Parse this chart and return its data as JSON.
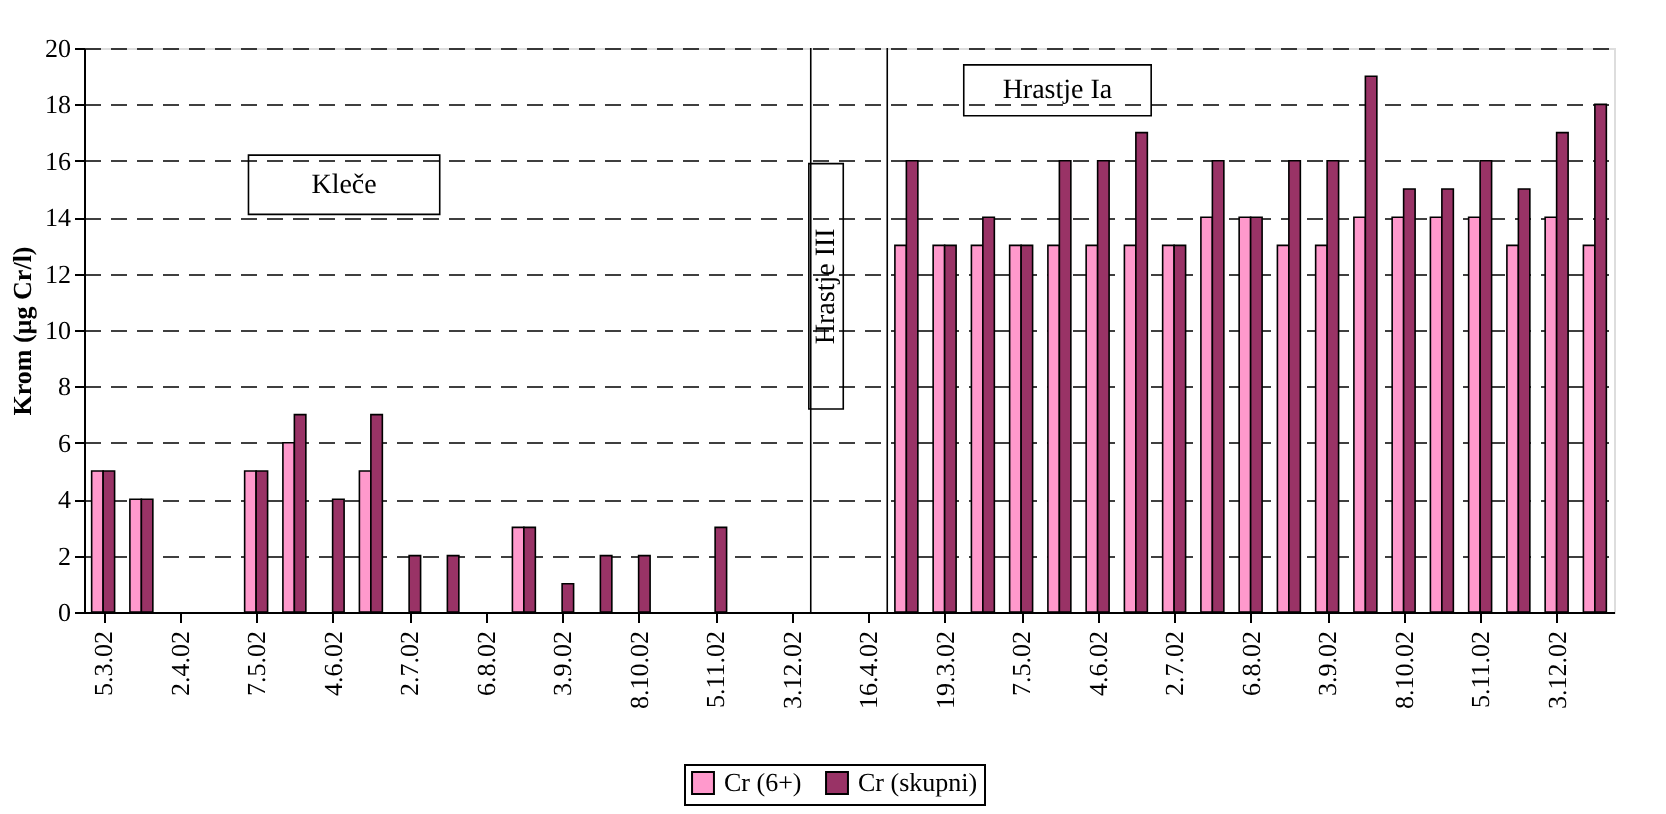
{
  "chart_data": {
    "type": "bar",
    "categories": [
      "5.3.02",
      null,
      "2.4.02",
      null,
      "7.5.02",
      null,
      "4.6.02",
      null,
      "2.7.02",
      null,
      "6.8.02",
      null,
      "3.9.02",
      null,
      "8.10.02",
      null,
      "5.11.02",
      null,
      "3.12.02",
      null,
      "16.4.02",
      null,
      "19.3.02",
      null,
      "7.5.02",
      null,
      "4.6.02",
      null,
      "2.7.02",
      null,
      "6.8.02",
      null,
      "3.9.02",
      null,
      "8.10.02",
      null,
      "5.11.02",
      null,
      "3.12.02",
      null
    ],
    "series": [
      {
        "name": "Cr (6+)",
        "color": "#ff99cc",
        "values": [
          5,
          4,
          null,
          null,
          5,
          6,
          null,
          5,
          null,
          null,
          null,
          3,
          null,
          null,
          null,
          null,
          null,
          null,
          null,
          null,
          null,
          13,
          13,
          13,
          13,
          13,
          13,
          13,
          13,
          14,
          14,
          13,
          13,
          14,
          14,
          14,
          14,
          13,
          14,
          13
        ]
      },
      {
        "name": "Cr (skupni)",
        "color": "#993366",
        "values": [
          5,
          4,
          null,
          null,
          5,
          7,
          4,
          7,
          2,
          2,
          null,
          3,
          1,
          2,
          2,
          null,
          3,
          null,
          null,
          null,
          null,
          16,
          13,
          14,
          13,
          16,
          16,
          17,
          13,
          16,
          14,
          16,
          16,
          19,
          15,
          15,
          16,
          15,
          17,
          18
        ]
      }
    ],
    "ylabel": "Krom (µg Cr/l)",
    "ylim": [
      0,
      20
    ],
    "yticks": [
      0,
      2,
      4,
      6,
      8,
      10,
      12,
      14,
      16,
      18,
      20
    ],
    "grid": "y",
    "legend": "bottom",
    "annotations": [
      "Kleče",
      "Hrastje III",
      "Hrastje Ia"
    ]
  }
}
